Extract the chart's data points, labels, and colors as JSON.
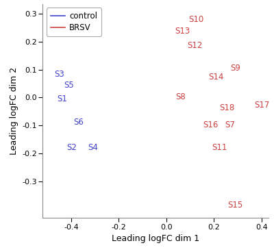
{
  "control_points": {
    "S1": [
      -0.46,
      -0.005
    ],
    "S2": [
      -0.42,
      -0.178
    ],
    "S3": [
      -0.47,
      0.082
    ],
    "S4": [
      -0.33,
      -0.178
    ],
    "S5": [
      -0.43,
      0.043
    ],
    "S6": [
      -0.39,
      -0.088
    ]
  },
  "brsv_points": {
    "S7": [
      0.245,
      -0.097
    ],
    "S8": [
      0.038,
      0.003
    ],
    "S9": [
      0.268,
      0.106
    ],
    "S10": [
      0.092,
      0.278
    ],
    "S11": [
      0.19,
      -0.178
    ],
    "S12": [
      0.086,
      0.186
    ],
    "S13": [
      0.036,
      0.238
    ],
    "S14": [
      0.176,
      0.073
    ],
    "S15": [
      0.257,
      -0.385
    ],
    "S16": [
      0.155,
      -0.097
    ],
    "S17": [
      0.368,
      -0.027
    ],
    "S18": [
      0.222,
      -0.038
    ]
  },
  "control_color": "#4040CC",
  "brsv_color": "#CC4040",
  "xlabel": "Leading logFC dim 1",
  "ylabel": "Leading logFC dim 2",
  "xlim": [
    -0.52,
    0.43
  ],
  "ylim": [
    -0.43,
    0.335
  ],
  "xticks": [
    -0.4,
    -0.2,
    0.0,
    0.2,
    0.4
  ],
  "yticks": [
    -0.3,
    -0.2,
    -0.1,
    0.0,
    0.1,
    0.2,
    0.3
  ],
  "legend_control": "control",
  "legend_brsv": "BRSV",
  "font_size": 8.5,
  "label_font_size": 8.5,
  "tick_font_size": 8,
  "axis_label_fontsize": 9
}
